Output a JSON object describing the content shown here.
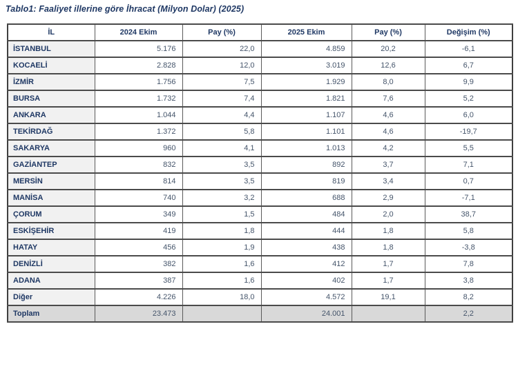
{
  "title": "Tablo1: Faaliyet illerine göre İhracat (Milyon Dolar) (2025)",
  "colors": {
    "title_text": "#1f3864",
    "header_text": "#1f3864",
    "province_text": "#1f3864",
    "number_text": "#44546a",
    "first_column_bg": "#f1f1f1",
    "total_row_bg": "#d9d9d9",
    "border": "#4a4a4a"
  },
  "table": {
    "columns": [
      "İL",
      "2024 Ekim",
      "Pay  (%)",
      "2025 Ekim",
      "Pay  (%)",
      "Değişim (%)"
    ],
    "rows": [
      {
        "il": "İSTANBUL",
        "v2024": "5.176",
        "pay2024": "22,0",
        "v2025": "4.859",
        "pay2025": "20,2",
        "degisim": "-6,1"
      },
      {
        "il": "KOCAELİ",
        "v2024": "2.828",
        "pay2024": "12,0",
        "v2025": "3.019",
        "pay2025": "12,6",
        "degisim": "6,7"
      },
      {
        "il": "İZMİR",
        "v2024": "1.756",
        "pay2024": "7,5",
        "v2025": "1.929",
        "pay2025": "8,0",
        "degisim": "9,9"
      },
      {
        "il": "BURSA",
        "v2024": "1.732",
        "pay2024": "7,4",
        "v2025": "1.821",
        "pay2025": "7,6",
        "degisim": "5,2"
      },
      {
        "il": "ANKARA",
        "v2024": "1.044",
        "pay2024": "4,4",
        "v2025": "1.107",
        "pay2025": "4,6",
        "degisim": "6,0"
      },
      {
        "il": "TEKİRDAĞ",
        "v2024": "1.372",
        "pay2024": "5,8",
        "v2025": "1.101",
        "pay2025": "4,6",
        "degisim": "-19,7"
      },
      {
        "il": "SAKARYA",
        "v2024": "960",
        "pay2024": "4,1",
        "v2025": "1.013",
        "pay2025": "4,2",
        "degisim": "5,5"
      },
      {
        "il": "GAZİANTEP",
        "v2024": "832",
        "pay2024": "3,5",
        "v2025": "892",
        "pay2025": "3,7",
        "degisim": "7,1"
      },
      {
        "il": "MERSİN",
        "v2024": "814",
        "pay2024": "3,5",
        "v2025": "819",
        "pay2025": "3,4",
        "degisim": "0,7"
      },
      {
        "il": "MANİSA",
        "v2024": "740",
        "pay2024": "3,2",
        "v2025": "688",
        "pay2025": "2,9",
        "degisim": "-7,1"
      },
      {
        "il": "ÇORUM",
        "v2024": "349",
        "pay2024": "1,5",
        "v2025": "484",
        "pay2025": "2,0",
        "degisim": "38,7"
      },
      {
        "il": "ESKİŞEHİR",
        "v2024": "419",
        "pay2024": "1,8",
        "v2025": "444",
        "pay2025": "1,8",
        "degisim": "5,8"
      },
      {
        "il": "HATAY",
        "v2024": "456",
        "pay2024": "1,9",
        "v2025": "438",
        "pay2025": "1,8",
        "degisim": "-3,8"
      },
      {
        "il": "DENİZLİ",
        "v2024": "382",
        "pay2024": "1,6",
        "v2025": "412",
        "pay2025": "1,7",
        "degisim": "7,8"
      },
      {
        "il": "ADANA",
        "v2024": "387",
        "pay2024": "1,6",
        "v2025": "402",
        "pay2025": "1,7",
        "degisim": "3,8"
      },
      {
        "il": "Diğer",
        "v2024": "4.226",
        "pay2024": "18,0",
        "v2025": "4.572",
        "pay2025": "19,1",
        "degisim": "8,2"
      }
    ],
    "total": {
      "il": "Toplam",
      "v2024": "23.473",
      "pay2024": "",
      "v2025": "24.001",
      "pay2025": "",
      "degisim": "2,2"
    }
  },
  "chart_data": {
    "type": "table",
    "title": "Tablo1: Faaliyet illerine göre İhracat (Milyon Dolar) (2025)",
    "columns": [
      "İL",
      "2024 Ekim",
      "Pay (%)",
      "2025 Ekim",
      "Pay (%)",
      "Değişim (%)"
    ],
    "rows_numeric": [
      [
        "İSTANBUL",
        5176,
        22.0,
        4859,
        20.2,
        -6.1
      ],
      [
        "KOCAELİ",
        2828,
        12.0,
        3019,
        12.6,
        6.7
      ],
      [
        "İZMİR",
        1756,
        7.5,
        1929,
        8.0,
        9.9
      ],
      [
        "BURSA",
        1732,
        7.4,
        1821,
        7.6,
        5.2
      ],
      [
        "ANKARA",
        1044,
        4.4,
        1107,
        4.6,
        6.0
      ],
      [
        "TEKİRDAĞ",
        1372,
        5.8,
        1101,
        4.6,
        -19.7
      ],
      [
        "SAKARYA",
        960,
        4.1,
        1013,
        4.2,
        5.5
      ],
      [
        "GAZİANTEP",
        832,
        3.5,
        892,
        3.7,
        7.1
      ],
      [
        "MERSİN",
        814,
        3.5,
        819,
        3.4,
        0.7
      ],
      [
        "MANİSA",
        740,
        3.2,
        688,
        2.9,
        -7.1
      ],
      [
        "ÇORUM",
        349,
        1.5,
        484,
        2.0,
        38.7
      ],
      [
        "ESKİŞEHİR",
        419,
        1.8,
        444,
        1.8,
        5.8
      ],
      [
        "HATAY",
        456,
        1.9,
        438,
        1.8,
        -3.8
      ],
      [
        "DENİZLİ",
        382,
        1.6,
        412,
        1.7,
        7.8
      ],
      [
        "ADANA",
        387,
        1.6,
        402,
        1.7,
        3.8
      ],
      [
        "Diğer",
        4226,
        18.0,
        4572,
        19.1,
        8.2
      ],
      [
        "Toplam",
        23473,
        null,
        24001,
        null,
        2.2
      ]
    ]
  }
}
